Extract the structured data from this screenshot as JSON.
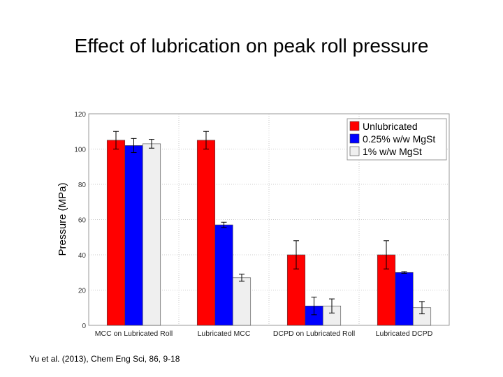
{
  "slide": {
    "title": "Effect of lubrication on peak roll pressure",
    "citation": "Yu et al. (2013), Chem Eng Sci, 86, 9-18"
  },
  "chart_data": {
    "type": "bar",
    "title": "",
    "xlabel": "",
    "ylabel": "Pressure (MPa)",
    "ylim": [
      0,
      120
    ],
    "yticks": [
      0,
      20,
      40,
      60,
      80,
      100,
      120
    ],
    "grid": true,
    "legend_position": "top-right",
    "categories": [
      "MCC on Lubricated Roll",
      "Lubricated MCC",
      "DCPD on Lubricated Roll",
      "Lubricated DCPD"
    ],
    "series": [
      {
        "name": "Unlubricated",
        "color": "#ff0000",
        "values": [
          105,
          105,
          40,
          40
        ],
        "errors": [
          5,
          5,
          8,
          8
        ]
      },
      {
        "name": "0.25% w/w MgSt",
        "color": "#0000ff",
        "values": [
          102,
          57,
          11,
          30
        ],
        "errors": [
          4,
          1.5,
          5,
          0.5
        ]
      },
      {
        "name": "1% w/w MgSt",
        "color": "#efefef",
        "values": [
          103,
          27,
          11,
          10
        ],
        "errors": [
          2.5,
          2,
          4,
          3.5
        ]
      }
    ]
  }
}
